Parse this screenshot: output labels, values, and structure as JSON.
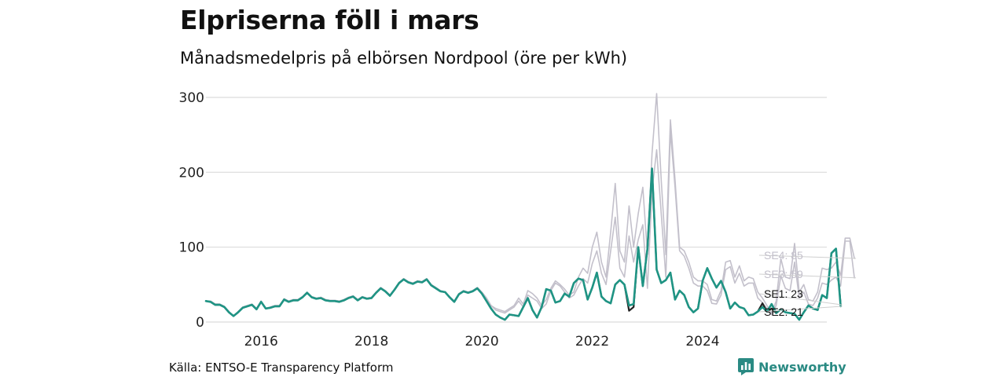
{
  "header": {
    "title": "Elpriserna föll i mars",
    "subtitle": "Månadsmedelpris på elbörsen Nordpool (öre per kWh)"
  },
  "footer": {
    "source": "Källa: ENTSO-E Transparency Platform",
    "brand": "Newsworthy",
    "brand_icon": "newsworthy-logo-icon"
  },
  "colors": {
    "background": "#ffffff",
    "highlight": "#1f9484",
    "dark": "#222222",
    "muted": "#c3c0cb",
    "grid": "#dcdcdc",
    "brand": "#2a8a83"
  },
  "chart_data": {
    "type": "line",
    "title": "Elpriserna föll i mars",
    "subtitle": "Månadsmedelpris på elbörsen Nordpool (öre per kWh)",
    "xlabel": "",
    "ylabel": "öre per kWh",
    "ylim": [
      0,
      300
    ],
    "yticks": [
      0,
      100,
      200,
      300
    ],
    "xlim": [
      2015.0,
      2026.25
    ],
    "xticks": [
      2016,
      2018,
      2020,
      2022,
      2024
    ],
    "xtick_labels": [
      "2016",
      "2018",
      "2020",
      "2022",
      "2024"
    ],
    "x_start": "2015-01",
    "grid": "horizontal",
    "legend": "direct labels at line ends, right side",
    "series": [
      {
        "name": "SE4",
        "end_label": "SE4: 85",
        "color": "#c3c0cb",
        "values": [
          28,
          28,
          24,
          24,
          21,
          14,
          8,
          14,
          20,
          22,
          24,
          18,
          28,
          18,
          20,
          22,
          22,
          31,
          28,
          30,
          30,
          34,
          40,
          34,
          32,
          33,
          30,
          29,
          29,
          28,
          30,
          33,
          35,
          30,
          34,
          32,
          33,
          40,
          46,
          42,
          36,
          44,
          53,
          58,
          54,
          52,
          55,
          54,
          58,
          50,
          46,
          42,
          40,
          34,
          28,
          38,
          42,
          40,
          42,
          46,
          40,
          32,
          22,
          18,
          16,
          14,
          18,
          22,
          32,
          24,
          42,
          38,
          32,
          22,
          30,
          45,
          55,
          50,
          44,
          36,
          40,
          60,
          72,
          65,
          100,
          120,
          80,
          60,
          120,
          185,
          95,
          80,
          155,
          100,
          145,
          180,
          90,
          225,
          305,
          190,
          90,
          270,
          190,
          100,
          95,
          80,
          60,
          55,
          55,
          50,
          30,
          28,
          42,
          80,
          82,
          60,
          75,
          55,
          60,
          58,
          40,
          32,
          22,
          12,
          28,
          85,
          60,
          58,
          105,
          40,
          50,
          30,
          28,
          40,
          72,
          70,
          72,
          80,
          62,
          112,
          112,
          85
        ]
      },
      {
        "name": "SE3",
        "end_label": "SE3: 59",
        "color": "#c3c0cb",
        "values": [
          28,
          28,
          24,
          24,
          21,
          14,
          8,
          14,
          20,
          22,
          24,
          18,
          28,
          18,
          20,
          22,
          22,
          31,
          28,
          30,
          30,
          34,
          40,
          34,
          32,
          33,
          30,
          29,
          29,
          28,
          30,
          33,
          35,
          30,
          34,
          32,
          33,
          40,
          46,
          42,
          36,
          44,
          53,
          58,
          54,
          52,
          55,
          54,
          58,
          50,
          46,
          42,
          40,
          34,
          28,
          38,
          42,
          40,
          42,
          46,
          40,
          32,
          22,
          16,
          14,
          12,
          16,
          20,
          28,
          20,
          36,
          32,
          28,
          18,
          24,
          42,
          52,
          48,
          40,
          32,
          36,
          48,
          58,
          52,
          78,
          95,
          65,
          50,
          95,
          140,
          72,
          60,
          115,
          80,
          110,
          130,
          45,
          175,
          230,
          145,
          60,
          255,
          180,
          95,
          88,
          72,
          52,
          48,
          48,
          42,
          25,
          24,
          36,
          70,
          74,
          52,
          65,
          48,
          52,
          52,
          32,
          26,
          18,
          10,
          22,
          62,
          45,
          42,
          80,
          32,
          40,
          24,
          22,
          32,
          52,
          50,
          56,
          60,
          48,
          108,
          108,
          59
        ]
      },
      {
        "name": "SE1",
        "end_label": "SE1: 23",
        "color": "#222222",
        "values": [
          28,
          27,
          23,
          23,
          20,
          13,
          8,
          13,
          19,
          21,
          23,
          17,
          27,
          18,
          19,
          21,
          21,
          30,
          27,
          29,
          29,
          33,
          39,
          33,
          31,
          32,
          29,
          28,
          28,
          27,
          29,
          32,
          34,
          29,
          33,
          31,
          32,
          39,
          45,
          41,
          35,
          43,
          52,
          57,
          53,
          51,
          54,
          53,
          57,
          49,
          45,
          41,
          40,
          33,
          27,
          37,
          41,
          39,
          41,
          45,
          38,
          28,
          18,
          10,
          6,
          3,
          10,
          9,
          8,
          20,
          32,
          16,
          6,
          20,
          44,
          42,
          26,
          28,
          38,
          34,
          52,
          58,
          56,
          30,
          46,
          66,
          34,
          28,
          25,
          50,
          56,
          50,
          15,
          20,
          100,
          48,
          98,
          205,
          70,
          52,
          56,
          66,
          30,
          42,
          36,
          20,
          13,
          18,
          55,
          72,
          58,
          46,
          55,
          40,
          18,
          26,
          20,
          18,
          9,
          10,
          14,
          25,
          14,
          18,
          12,
          17,
          13,
          12,
          11,
          3,
          13,
          22,
          18,
          16,
          36,
          32,
          92,
          98,
          23
        ]
      },
      {
        "name": "SE2",
        "end_label": "SE2: 21",
        "color": "#1f9484",
        "values": [
          28,
          27,
          23,
          23,
          20,
          13,
          8,
          13,
          19,
          21,
          23,
          17,
          27,
          18,
          19,
          21,
          21,
          30,
          27,
          29,
          29,
          33,
          39,
          33,
          31,
          32,
          29,
          28,
          28,
          27,
          29,
          32,
          34,
          29,
          33,
          31,
          32,
          39,
          45,
          41,
          35,
          43,
          52,
          57,
          53,
          51,
          54,
          53,
          57,
          49,
          45,
          41,
          40,
          33,
          27,
          37,
          41,
          39,
          41,
          45,
          38,
          28,
          18,
          10,
          6,
          3,
          10,
          9,
          8,
          20,
          32,
          16,
          6,
          20,
          44,
          42,
          26,
          28,
          38,
          34,
          52,
          58,
          56,
          30,
          46,
          66,
          34,
          28,
          25,
          50,
          56,
          50,
          22,
          24,
          100,
          48,
          98,
          205,
          70,
          52,
          56,
          66,
          30,
          42,
          36,
          20,
          13,
          18,
          55,
          72,
          58,
          46,
          55,
          40,
          18,
          26,
          20,
          18,
          9,
          10,
          14,
          20,
          14,
          24,
          12,
          17,
          13,
          12,
          11,
          3,
          13,
          22,
          18,
          16,
          36,
          32,
          92,
          98,
          21
        ]
      }
    ]
  }
}
